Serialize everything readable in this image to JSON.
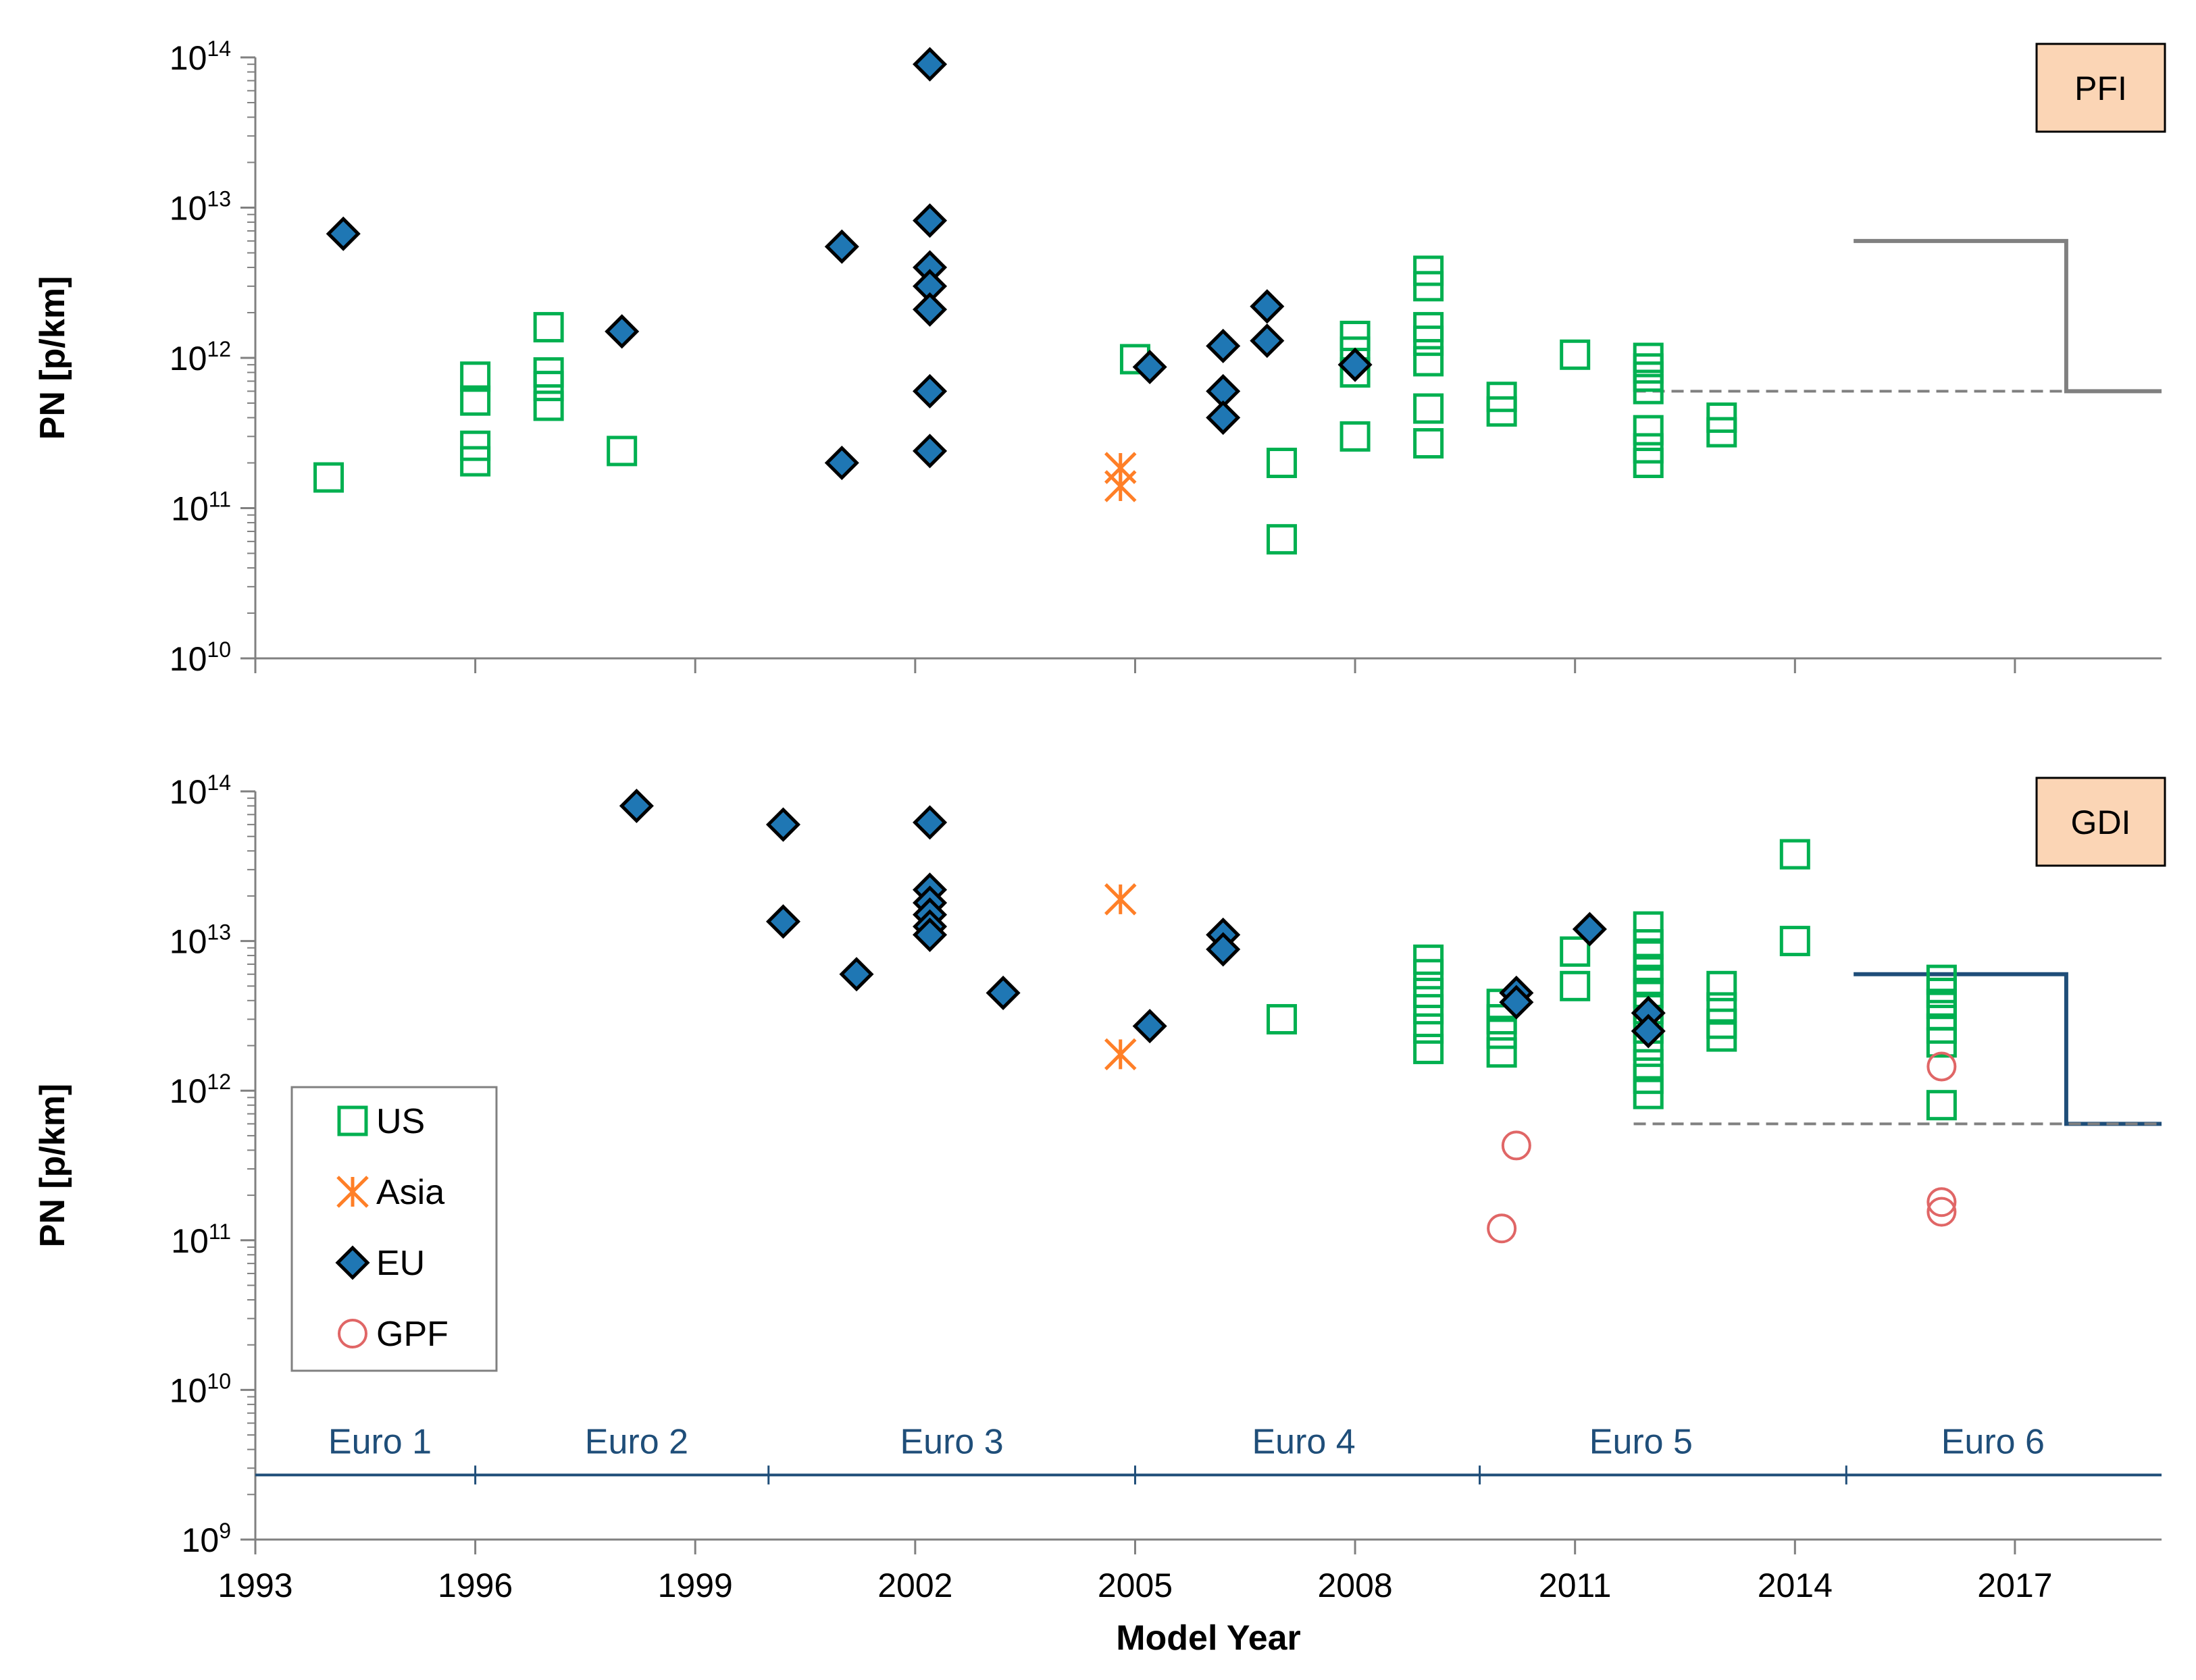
{
  "chart_data": [
    {
      "type": "scatter",
      "panel_label": "PFI",
      "ylabel": "PN [p/km]",
      "yscale": "log",
      "ylim": [
        10000000000.0,
        100000000000000.0
      ],
      "xlim": [
        1993,
        2019
      ],
      "series": [
        {
          "name": "US",
          "marker": "square-open",
          "color": "#00b050",
          "points": [
            [
              1994,
              160000000000.0
            ],
            [
              1996,
              750000000000.0
            ],
            [
              1996,
              520000000000.0
            ],
            [
              1996,
              260000000000.0
            ],
            [
              1996,
              205000000000.0
            ],
            [
              1997,
              1600000000000.0
            ],
            [
              1997,
              800000000000.0
            ],
            [
              1997,
              650000000000.0
            ],
            [
              1997,
              480000000000.0
            ],
            [
              1998,
              240000000000.0
            ],
            [
              2005,
              980000000000.0
            ],
            [
              2007,
              200000000000.0
            ],
            [
              2007,
              62000000000.0
            ],
            [
              2008,
              1400000000000.0
            ],
            [
              2008,
              1100000000000.0
            ],
            [
              2008,
              800000000000.0
            ],
            [
              2008,
              300000000000.0
            ],
            [
              2009,
              3800000000000.0
            ],
            [
              2009,
              3000000000000.0
            ],
            [
              2009,
              1600000000000.0
            ],
            [
              2009,
              1300000000000.0
            ],
            [
              2009,
              950000000000.0
            ],
            [
              2009,
              460000000000.0
            ],
            [
              2009,
              270000000000.0
            ],
            [
              2010,
              550000000000.0
            ],
            [
              2010,
              440000000000.0
            ],
            [
              2011,
              1050000000000.0
            ],
            [
              2012,
              1000000000000.0
            ],
            [
              2012,
              850000000000.0
            ],
            [
              2012,
              750000000000.0
            ],
            [
              2012,
              620000000000.0
            ],
            [
              2012,
              330000000000.0
            ],
            [
              2012,
              250000000000.0
            ],
            [
              2012,
              200000000000.0
            ],
            [
              2013,
              400000000000.0
            ],
            [
              2013,
              320000000000.0
            ]
          ]
        },
        {
          "name": "Asia",
          "marker": "asterisk",
          "color": "#ff7f27",
          "points": [
            [
              2004.8,
              185000000000.0
            ],
            [
              2004.8,
              140000000000.0
            ]
          ]
        },
        {
          "name": "EU",
          "marker": "diamond-filled",
          "color": "#1f77b4",
          "points": [
            [
              1994.2,
              6700000000000.0
            ],
            [
              1998,
              1500000000000.0
            ],
            [
              2001,
              5500000000000.0
            ],
            [
              2001,
              200000000000.0
            ],
            [
              2002.2,
              90000000000000.0
            ],
            [
              2002.2,
              8200000000000.0
            ],
            [
              2002.2,
              4000000000000.0
            ],
            [
              2002.2,
              3000000000000.0
            ],
            [
              2002.2,
              2100000000000.0
            ],
            [
              2002.2,
              600000000000.0
            ],
            [
              2002.2,
              240000000000.0
            ],
            [
              2005.2,
              870000000000.0
            ],
            [
              2006.2,
              1200000000000.0
            ],
            [
              2006.2,
              600000000000.0
            ],
            [
              2006.2,
              400000000000.0
            ],
            [
              2006.8,
              2200000000000.0
            ],
            [
              2006.8,
              1300000000000.0
            ],
            [
              2008,
              900000000000.0
            ]
          ]
        }
      ],
      "limits": [
        {
          "name": "limit-solid",
          "style": "solid",
          "color": "#808080",
          "points": [
            [
              2014.8,
              6000000000000.0
            ],
            [
              2017.7,
              6000000000000.0
            ],
            [
              2017.7,
              600000000000.0
            ],
            [
              2019,
              600000000000.0
            ]
          ]
        },
        {
          "name": "limit-dashed",
          "style": "dashed",
          "color": "#808080",
          "points": [
            [
              2011.8,
              600000000000.0
            ],
            [
              2019,
              600000000000.0
            ]
          ]
        }
      ]
    },
    {
      "type": "scatter",
      "panel_label": "GDI",
      "ylabel": "PN [p/km]",
      "xlabel": "Model Year",
      "yscale": "log",
      "ylim": [
        1000000000.0,
        100000000000000.0
      ],
      "xlim": [
        1993,
        2019
      ],
      "x_ticks": [
        "1993",
        "1996",
        "1999",
        "2002",
        "2005",
        "2008",
        "2011",
        "2014",
        "2017"
      ],
      "series": [
        {
          "name": "US",
          "marker": "square-open",
          "color": "#00b050",
          "points": [
            [
              2007,
              3000000000000.0
            ],
            [
              2009,
              7500000000000.0
            ],
            [
              2009,
              6000000000000.0
            ],
            [
              2009,
              4500000000000.0
            ],
            [
              2009,
              3500000000000.0
            ],
            [
              2009,
              2600000000000.0
            ],
            [
              2009,
              1900000000000.0
            ],
            [
              2010,
              3800000000000.0
            ],
            [
              2010,
              3000000000000.0
            ],
            [
              2010,
              2400000000000.0
            ],
            [
              2010,
              1800000000000.0
            ],
            [
              2011,
              8500000000000.0
            ],
            [
              2011,
              5000000000000.0
            ],
            [
              2012,
              12500000000000.0
            ],
            [
              2012,
              9500000000000.0
            ],
            [
              2012,
              8000000000000.0
            ],
            [
              2012,
              6500000000000.0
            ],
            [
              2012,
              5500000000000.0
            ],
            [
              2012,
              4500000000000.0
            ],
            [
              2012,
              3500000000000.0
            ],
            [
              2012,
              2600000000000.0
            ],
            [
              2012,
              2000000000000.0
            ],
            [
              2012,
              1500000000000.0
            ],
            [
              2012,
              1200000000000.0
            ],
            [
              2012,
              950000000000.0
            ],
            [
              2013,
              5000000000000.0
            ],
            [
              2013,
              3600000000000.0
            ],
            [
              2013,
              2800000000000.0
            ],
            [
              2013,
              2300000000000.0
            ],
            [
              2014,
              38000000000000.0
            ],
            [
              2014,
              10000000000000.0
            ],
            [
              2016,
              5500000000000.0
            ],
            [
              2016,
              4500000000000.0
            ],
            [
              2016,
              3800000000000.0
            ],
            [
              2016,
              3200000000000.0
            ],
            [
              2016,
              2600000000000.0
            ],
            [
              2016,
              2100000000000.0
            ],
            [
              2016,
              800000000000.0
            ]
          ]
        },
        {
          "name": "Asia",
          "marker": "asterisk",
          "color": "#ff7f27",
          "points": [
            [
              2004.8,
              19000000000000.0
            ],
            [
              2004.8,
              1750000000000.0
            ]
          ]
        },
        {
          "name": "EU",
          "marker": "diamond-filled",
          "color": "#1f77b4",
          "points": [
            [
              1998.2,
              80000000000000.0
            ],
            [
              2000.2,
              60000000000000.0
            ],
            [
              2000.2,
              13500000000000.0
            ],
            [
              2001.2,
              6000000000000.0
            ],
            [
              2002.2,
              62000000000000.0
            ],
            [
              2002.2,
              22000000000000.0
            ],
            [
              2002.2,
              18000000000000.0
            ],
            [
              2002.2,
              15000000000000.0
            ],
            [
              2002.2,
              12500000000000.0
            ],
            [
              2002.2,
              11000000000000.0
            ],
            [
              2003.2,
              4500000000000.0
            ],
            [
              2005.2,
              2700000000000.0
            ],
            [
              2006.2,
              11000000000000.0
            ],
            [
              2006.2,
              8800000000000.0
            ],
            [
              2010.2,
              4500000000000.0
            ],
            [
              2010.2,
              3900000000000.0
            ],
            [
              2011.2,
              12000000000000.0
            ],
            [
              2012,
              3300000000000.0
            ],
            [
              2012,
              2500000000000.0
            ]
          ]
        },
        {
          "name": "GPF",
          "marker": "circle-open",
          "color": "#e06666",
          "points": [
            [
              2010,
              120000000000.0
            ],
            [
              2010.2,
              430000000000.0
            ],
            [
              2016,
              1450000000000.0
            ],
            [
              2016,
              180000000000.0
            ],
            [
              2016,
              155000000000.0
            ]
          ]
        }
      ],
      "limits": [
        {
          "name": "limit-solid",
          "style": "solid",
          "color": "#1f4e79",
          "points": [
            [
              2014.8,
              6000000000000.0
            ],
            [
              2017.7,
              6000000000000.0
            ],
            [
              2017.7,
              600000000000.0
            ],
            [
              2019,
              600000000000.0
            ]
          ]
        },
        {
          "name": "limit-dashed",
          "style": "dashed",
          "color": "#808080",
          "points": [
            [
              2011.8,
              600000000000.0
            ],
            [
              2019,
              600000000000.0
            ]
          ]
        }
      ],
      "euro_stages": {
        "labels": [
          {
            "text": "Euro 1",
            "x": 1994.7
          },
          {
            "text": "Euro 2",
            "x": 1998.2
          },
          {
            "text": "Euro 3",
            "x": 2002.5
          },
          {
            "text": "Euro 4",
            "x": 2007.3
          },
          {
            "text": "Euro 5",
            "x": 2011.9
          },
          {
            "text": "Euro 6",
            "x": 2016.7
          }
        ],
        "boundaries": [
          1996,
          2000,
          2005,
          2009.7,
          2014.7
        ],
        "line_level": 2700000000.0
      },
      "legend": {
        "position": "left",
        "entries": [
          "US",
          "Asia",
          "EU",
          "GPF"
        ]
      }
    }
  ]
}
